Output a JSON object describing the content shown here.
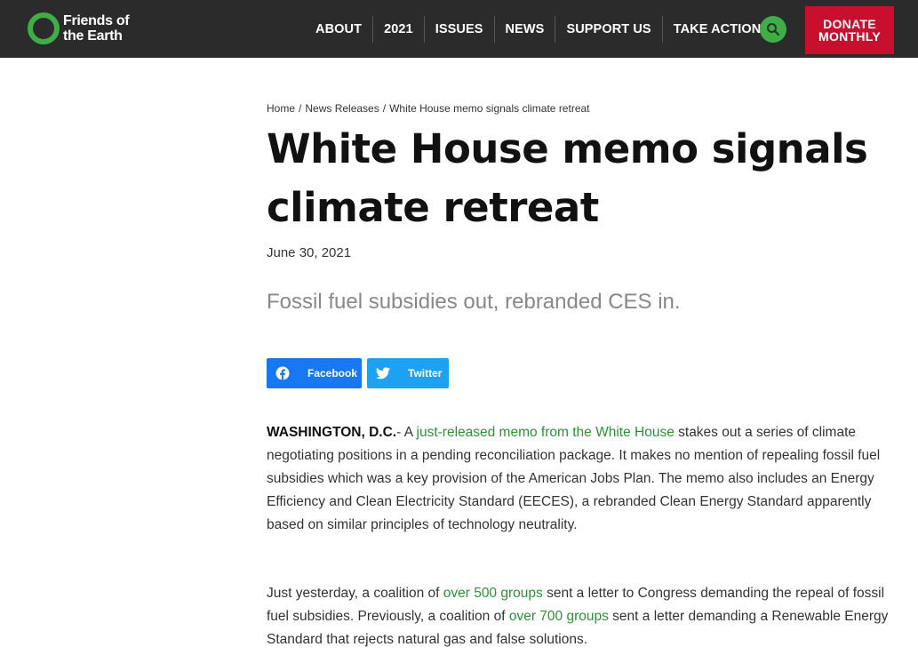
{
  "header": {
    "logo_line1": "Friends of",
    "logo_line2": "the Earth",
    "nav": [
      "ABOUT",
      "2021",
      "ISSUES",
      "NEWS",
      "SUPPORT US",
      "TAKE ACTION"
    ],
    "donate_line1": "DONATE",
    "donate_line2": "MONTHLY"
  },
  "breadcrumb": {
    "home": "Home",
    "section": "News Releases",
    "current": "White House memo signals climate retreat",
    "separator": "/"
  },
  "article": {
    "title": "White House memo signals climate retreat",
    "date": "June 30, 2021",
    "subtitle": "Fossil fuel subsidies out, rebranded CES in.",
    "share": {
      "facebook": "Facebook",
      "twitter": "Twitter"
    },
    "p1": {
      "dateline": "WASHINGTON, D.C.",
      "dash": "- A ",
      "link": "just-released memo from the White House",
      "rest": " stakes out a series of climate negotiating positions in a pending reconciliation package. It makes no mention of repealing fossil fuel subsidies which was a key provision of the American Jobs Plan. The memo also includes an Energy Efficiency and Clean Electricity Standard (EECES), a rebranded Clean Energy Standard apparently based on similar principles of technology neutrality."
    },
    "p2": {
      "t1": "Just yesterday, a coalition of ",
      "link1": "over 500 groups",
      "t2": " sent a letter to Congress demanding the repeal of fossil fuel subsidies. Previously, a coalition of ",
      "link2": "over 700 groups",
      "t3": " sent a letter demanding a Renewable Energy Standard that rejects natural gas and false solutions."
    }
  },
  "colors": {
    "header_bg": "#2b2b2b",
    "brand_green": "#3fae49",
    "donate_red": "#c8102e",
    "link_green": "#2f8f3a",
    "facebook_blue": "#1877f2",
    "twitter_blue": "#1da1f2"
  },
  "icons": [
    "logo-ring-icon",
    "search-icon",
    "facebook-icon",
    "twitter-icon"
  ]
}
